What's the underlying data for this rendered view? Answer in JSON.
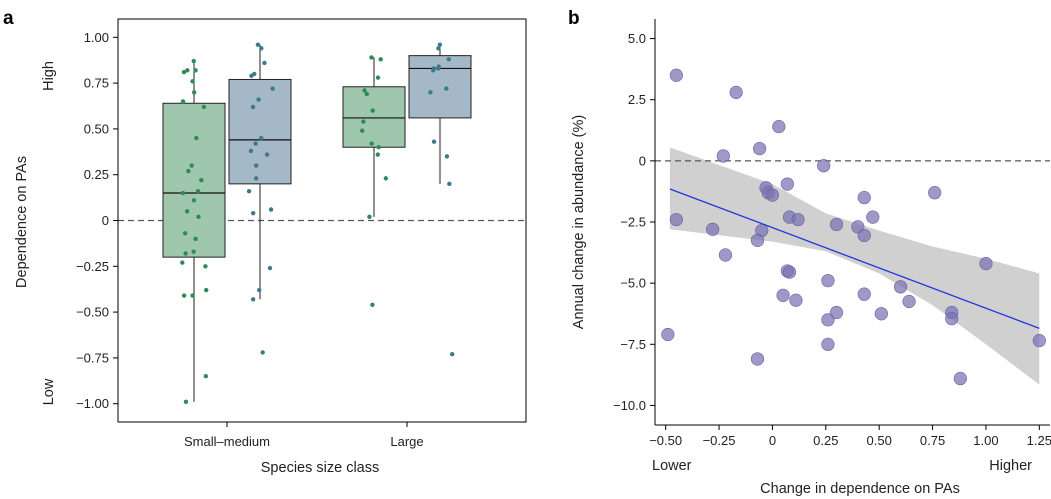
{
  "panels": {
    "a": {
      "letter": "a"
    },
    "b": {
      "letter": "b"
    }
  },
  "chart_data": [
    {
      "type": "box",
      "xlabel": "Species size class",
      "ylabel": "Dependence on PAs",
      "ylim": [
        -1.1,
        1.1
      ],
      "yticks": [
        "-1.00",
        "-0.75",
        "-0.50",
        "-0.25",
        "0",
        "0.25",
        "0.50",
        "0.75",
        "1.00"
      ],
      "y_extreme_labels": {
        "high": "High",
        "low": "Low"
      },
      "categories": [
        "Small–medium",
        "Large"
      ],
      "reference_line": 0,
      "colors": {
        "green_fill": "#9fc7ae",
        "blue_fill": "#a4b8c8",
        "green_point": "#2e8b57",
        "blue_point": "#3d7a88"
      },
      "boxes": [
        {
          "category": "Small–medium",
          "group": "green",
          "q1": -0.2,
          "median": 0.15,
          "q3": 0.64,
          "whisker_low": -0.99,
          "whisker_high": 0.87,
          "points": [
            0.87,
            0.82,
            0.81,
            0.82,
            0.76,
            0.7,
            0.65,
            0.62,
            0.45,
            0.3,
            0.27,
            0.22,
            0.16,
            0.15,
            0.11,
            0.05,
            0.02,
            -0.07,
            -0.1,
            -0.17,
            -0.18,
            -0.23,
            -0.25,
            -0.38,
            -0.41,
            -0.41,
            -0.85,
            -0.99
          ]
        },
        {
          "category": "Small–medium",
          "group": "blue",
          "q1": 0.2,
          "median": 0.44,
          "q3": 0.77,
          "whisker_low": -0.43,
          "whisker_high": 0.96,
          "points": [
            0.96,
            0.94,
            0.86,
            0.8,
            0.79,
            0.72,
            0.66,
            0.62,
            0.45,
            0.42,
            0.38,
            0.36,
            0.3,
            0.23,
            0.16,
            0.06,
            0.04,
            -0.26,
            -0.38,
            -0.43,
            -0.72
          ]
        },
        {
          "category": "Large",
          "group": "green",
          "q1": 0.4,
          "median": 0.56,
          "q3": 0.73,
          "whisker_low": 0.02,
          "whisker_high": 0.89,
          "points": [
            0.89,
            0.88,
            0.78,
            0.71,
            0.69,
            0.6,
            0.54,
            0.49,
            0.42,
            0.4,
            0.36,
            0.23,
            0.02,
            -0.46
          ]
        },
        {
          "category": "Large",
          "group": "blue",
          "q1": 0.56,
          "median": 0.83,
          "q3": 0.9,
          "whisker_low": 0.2,
          "whisker_high": 0.96,
          "points": [
            0.96,
            0.94,
            0.88,
            0.84,
            0.83,
            0.83,
            0.82,
            0.72,
            0.7,
            0.43,
            0.35,
            0.2,
            -0.73
          ]
        }
      ]
    },
    {
      "type": "scatter",
      "xlabel": "Change in dependence on PAs",
      "ylabel": "Annual change in abundance (%)",
      "x_extreme_labels": {
        "low": "Lower",
        "high": "Higher"
      },
      "xlim": [
        -0.55,
        1.3
      ],
      "ylim": [
        -10.8,
        5.8
      ],
      "xticks": [
        "-0.50",
        "-0.25",
        "0",
        "0.25",
        "0.50",
        "0.75",
        "1.00",
        "1.25"
      ],
      "yticks": [
        "5.0",
        "2.5",
        "0",
        "-2.5",
        "-5.0",
        "-7.5",
        "-10.0"
      ],
      "reference_line": 0,
      "colors": {
        "point": "#7a72b2",
        "fit": "#1f35e0",
        "band": "#d0d0d0"
      },
      "fit_line": {
        "x": [
          -0.48,
          1.25
        ],
        "y": [
          -1.15,
          -6.85
        ]
      },
      "confidence_band": {
        "x": [
          -0.48,
          0.0,
          0.25,
          0.5,
          0.75,
          1.0,
          1.25
        ],
        "upper": [
          0.55,
          -0.95,
          -2.15,
          -2.85,
          -3.5,
          -4.0,
          -4.6
        ],
        "lower": [
          -2.8,
          -3.3,
          -3.7,
          -4.6,
          -5.9,
          -7.5,
          -9.15
        ]
      },
      "points": [
        {
          "x": -0.45,
          "y": 3.5
        },
        {
          "x": -0.17,
          "y": 2.8
        },
        {
          "x": 0.03,
          "y": 1.4
        },
        {
          "x": -0.23,
          "y": 0.2
        },
        {
          "x": -0.06,
          "y": 0.5
        },
        {
          "x": 0.24,
          "y": -0.2
        },
        {
          "x": -0.03,
          "y": -1.1
        },
        {
          "x": -0.02,
          "y": -1.3
        },
        {
          "x": 0.0,
          "y": -1.4
        },
        {
          "x": 0.07,
          "y": -0.95
        },
        {
          "x": 0.43,
          "y": -1.5
        },
        {
          "x": 0.76,
          "y": -1.3
        },
        {
          "x": -0.45,
          "y": -2.4
        },
        {
          "x": -0.28,
          "y": -2.8
        },
        {
          "x": -0.05,
          "y": -2.85
        },
        {
          "x": 0.08,
          "y": -2.3
        },
        {
          "x": 0.12,
          "y": -2.4
        },
        {
          "x": 0.3,
          "y": -2.6
        },
        {
          "x": 0.4,
          "y": -2.7
        },
        {
          "x": 0.43,
          "y": -3.05
        },
        {
          "x": 0.47,
          "y": -2.3
        },
        {
          "x": -0.22,
          "y": -3.85
        },
        {
          "x": -0.07,
          "y": -3.25
        },
        {
          "x": 0.07,
          "y": -4.5
        },
        {
          "x": 0.08,
          "y": -4.55
        },
        {
          "x": 0.26,
          "y": -4.9
        },
        {
          "x": 0.05,
          "y": -5.5
        },
        {
          "x": 0.11,
          "y": -5.7
        },
        {
          "x": 0.43,
          "y": -5.45
        },
        {
          "x": 0.6,
          "y": -5.15
        },
        {
          "x": 0.64,
          "y": -5.75
        },
        {
          "x": 0.26,
          "y": -6.5
        },
        {
          "x": 0.3,
          "y": -6.2
        },
        {
          "x": 0.51,
          "y": -6.25
        },
        {
          "x": 0.84,
          "y": -6.2
        },
        {
          "x": 0.84,
          "y": -6.45
        },
        {
          "x": 1.0,
          "y": -4.2
        },
        {
          "x": 1.25,
          "y": -7.35
        },
        {
          "x": -0.49,
          "y": -7.1
        },
        {
          "x": 0.26,
          "y": -7.5
        },
        {
          "x": -0.07,
          "y": -8.1
        },
        {
          "x": 0.88,
          "y": -8.9
        }
      ]
    }
  ]
}
